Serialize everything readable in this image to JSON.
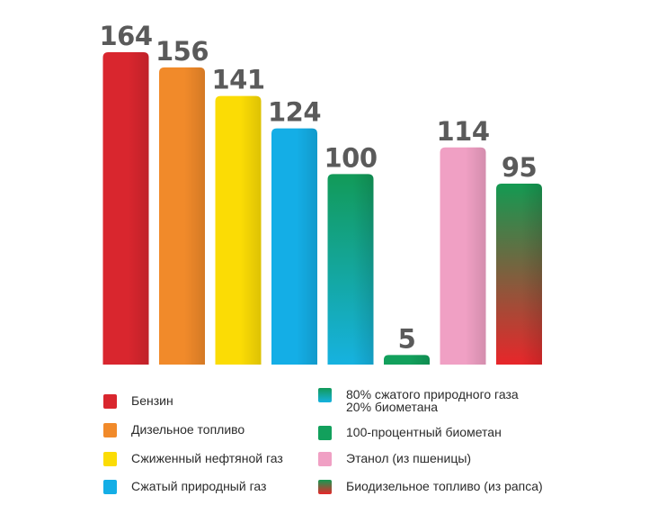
{
  "chart_data": {
    "type": "bar",
    "title": "",
    "xlabel": "",
    "ylabel": "",
    "ylim": [
      0,
      164
    ],
    "grid": false,
    "legend_placement": "bottom",
    "categories": [
      "Бензин",
      "Дизельное топливо",
      "Сжиженный нефтяной газ",
      "Сжатый природный газ",
      "80% сжатого природного газа 20% биометана",
      "100-процентный биометан",
      "Этанол (из пшеницы)",
      "Биодизельное топливо (из рапса)"
    ],
    "values": [
      164,
      156,
      141,
      124,
      100,
      5,
      114,
      95
    ],
    "value_labels": [
      "164",
      "156",
      "141",
      "124",
      "100",
      "5",
      "114",
      "95"
    ],
    "colors": [
      {
        "top": "#d9262e",
        "bottom": "#d9262e"
      },
      {
        "top": "#f18a2a",
        "bottom": "#f18a2a"
      },
      {
        "top": "#fbdc05",
        "bottom": "#fbdc05"
      },
      {
        "top": "#14aee6",
        "bottom": "#14aee6"
      },
      {
        "top": "#129a58",
        "bottom": "#16b2e0"
      },
      {
        "top": "#12a05c",
        "bottom": "#12a05c"
      },
      {
        "top": "#f0a0c4",
        "bottom": "#f0a0c4"
      },
      {
        "top": "#139a52",
        "bottom": "#e8262a"
      }
    ]
  },
  "legend": {
    "left": [
      {
        "label_lines": [
          "Бензин"
        ]
      },
      {
        "label_lines": [
          "Дизельное топливо"
        ]
      },
      {
        "label_lines": [
          "Сжиженный нефтяной газ"
        ]
      },
      {
        "label_lines": [
          "Сжатый природный газ"
        ]
      }
    ],
    "right": [
      {
        "label_lines": [
          "80% сжатого природного газа",
          "20% биометана"
        ]
      },
      {
        "label_lines": [
          "100-процентный биометан"
        ]
      },
      {
        "label_lines": [
          "Этанол (из пшеницы)"
        ]
      },
      {
        "label_lines": [
          "Биодизельное топливо (из рапса)"
        ]
      }
    ]
  }
}
